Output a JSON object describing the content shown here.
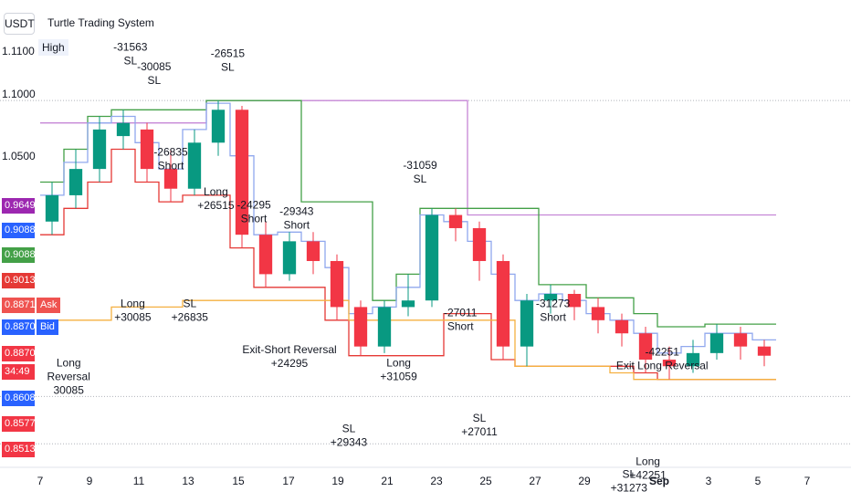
{
  "symbol": "USDT",
  "title": "Turtle Trading System",
  "high_label": "High",
  "yaxis": {
    "ticks": [
      1.1,
      1.05
    ],
    "tick_labels": [
      "1.1000",
      "1.0500"
    ],
    "top_partial": "1.1100"
  },
  "xaxis": {
    "labels": [
      "7",
      "9",
      "11",
      "13",
      "15",
      "17",
      "19",
      "21",
      "23",
      "25",
      "27",
      "29",
      "Sep",
      "3",
      "5",
      "7"
    ]
  },
  "price_tags": [
    {
      "label": "0.9649",
      "color": "#9c27b0"
    },
    {
      "label": "0.9088",
      "color": "#2962ff"
    },
    {
      "label": "0.9088",
      "color": "#43a047"
    },
    {
      "label": "0.9013",
      "color": "#e53935"
    },
    {
      "label": "0.8871",
      "color": "#ef5350",
      "side": "Ask"
    },
    {
      "label": "0.8870",
      "color": "#2962ff",
      "side": "Bid"
    },
    {
      "label": "0.8870",
      "color": "#f23645"
    },
    {
      "label": "34:49",
      "color": "#f23645"
    },
    {
      "label": "0.8608",
      "color": "#2962ff"
    },
    {
      "label": "0.8577",
      "color": "#f23645"
    },
    {
      "label": "0.8513",
      "color": "#f23645"
    }
  ],
  "chart_data": {
    "type": "candlestick",
    "title": "Turtle Trading System",
    "x_dates": [
      "7",
      "8",
      "9",
      "10",
      "11",
      "12",
      "13",
      "14",
      "15",
      "16",
      "17",
      "18",
      "19",
      "20",
      "21",
      "22",
      "23",
      "24",
      "25",
      "26",
      "27",
      "28",
      "29",
      "30",
      "31",
      "Sep",
      "2",
      "3",
      "4",
      "5",
      "6"
    ],
    "close": [
      1.04,
      1.06,
      1.09,
      1.095,
      1.06,
      1.045,
      1.08,
      1.105,
      1.01,
      0.98,
      1.005,
      0.99,
      0.955,
      0.925,
      0.955,
      0.96,
      1.025,
      1.015,
      0.99,
      0.925,
      0.96,
      0.965,
      0.955,
      0.945,
      0.935,
      0.915,
      0.91,
      0.92,
      0.935,
      0.925,
      0.918
    ],
    "open": [
      1.02,
      1.04,
      1.06,
      1.085,
      1.09,
      1.06,
      1.045,
      1.08,
      1.105,
      1.01,
      0.98,
      1.005,
      0.99,
      0.955,
      0.925,
      0.955,
      0.96,
      1.025,
      1.015,
      0.99,
      0.925,
      0.96,
      0.965,
      0.955,
      0.945,
      0.935,
      0.915,
      0.91,
      0.92,
      0.935,
      0.925
    ],
    "high": [
      1.05,
      1.075,
      1.1,
      1.105,
      1.095,
      1.075,
      1.09,
      1.112,
      1.108,
      1.02,
      1.012,
      1.012,
      0.995,
      0.96,
      0.96,
      0.98,
      1.03,
      1.03,
      1.02,
      0.995,
      0.965,
      0.972,
      0.968,
      0.962,
      0.95,
      0.94,
      0.925,
      0.93,
      0.942,
      0.94,
      0.93
    ],
    "low": [
      1.01,
      1.03,
      1.05,
      1.075,
      1.05,
      1.035,
      1.04,
      1.07,
      1.0,
      0.97,
      0.975,
      0.98,
      0.945,
      0.918,
      0.92,
      0.948,
      0.955,
      1.005,
      0.975,
      0.915,
      0.91,
      0.95,
      0.945,
      0.935,
      0.925,
      0.905,
      0.9,
      0.905,
      0.915,
      0.915,
      0.91
    ],
    "lines": [
      {
        "color": "#c586d6",
        "values": [
          1.095,
          1.095,
          1.095,
          1.095,
          1.095,
          1.095,
          1.095,
          1.112,
          1.112,
          1.112,
          1.112,
          1.112,
          1.112,
          1.112,
          1.112,
          1.112,
          1.112,
          1.112,
          1.025,
          1.025,
          1.025,
          1.025,
          1.025,
          1.025,
          1.025,
          1.025,
          1.025,
          1.025,
          1.025,
          1.025,
          1.025
        ]
      },
      {
        "color": "#43a047",
        "values": [
          1.05,
          1.075,
          1.1,
          1.105,
          1.105,
          1.105,
          1.105,
          1.112,
          1.112,
          1.112,
          1.112,
          1.035,
          1.035,
          1.035,
          0.96,
          0.98,
          1.03,
          1.03,
          1.03,
          1.03,
          1.03,
          0.972,
          0.972,
          0.962,
          0.962,
          0.95,
          0.94,
          0.94,
          0.942,
          0.942,
          0.942
        ]
      },
      {
        "color": "#90a8ee",
        "values": [
          1.04,
          1.065,
          1.095,
          1.1,
          1.08,
          1.06,
          1.09,
          1.11,
          1.07,
          1.01,
          1.012,
          1.005,
          0.985,
          0.95,
          0.955,
          0.97,
          1.025,
          1.02,
          1.005,
          0.98,
          0.96,
          0.965,
          0.96,
          0.95,
          0.945,
          0.935,
          0.92,
          0.925,
          0.935,
          0.935,
          0.93
        ]
      },
      {
        "color": "#e53935",
        "values": [
          1.01,
          1.03,
          1.05,
          1.075,
          1.05,
          1.035,
          1.04,
          1.04,
          1.0,
          0.97,
          0.97,
          0.97,
          0.945,
          0.918,
          0.918,
          0.918,
          0.918,
          0.95,
          0.95,
          0.915,
          0.91,
          0.91,
          0.91,
          0.91,
          0.91,
          0.905,
          0.9,
          0.9,
          0.9,
          0.9,
          0.9
        ]
      },
      {
        "color": "#f5b041",
        "values": [
          0.945,
          0.945,
          0.945,
          0.955,
          0.955,
          0.955,
          0.96,
          0.96,
          0.96,
          0.96,
          0.96,
          0.96,
          0.96,
          0.945,
          0.945,
          0.945,
          0.945,
          0.945,
          0.945,
          0.945,
          0.91,
          0.91,
          0.91,
          0.91,
          0.905,
          0.9,
          0.9,
          0.9,
          0.9,
          0.9,
          0.9
        ]
      }
    ],
    "annotations": [
      {
        "x": 3.3,
        "y": 1.15,
        "lines": [
          "-31563",
          "SL"
        ]
      },
      {
        "x": 4.3,
        "y": 1.135,
        "lines": [
          "-30085",
          "SL"
        ]
      },
      {
        "x": 7.4,
        "y": 1.145,
        "lines": [
          "-26515",
          "SL"
        ]
      },
      {
        "x": 5.0,
        "y": 1.07,
        "lines": [
          "-26835",
          "Short"
        ]
      },
      {
        "x": 6.9,
        "y": 1.04,
        "lines": [
          "Long",
          "+26515"
        ]
      },
      {
        "x": 8.5,
        "y": 1.03,
        "lines": [
          "-24295",
          "Short"
        ]
      },
      {
        "x": 10.3,
        "y": 1.025,
        "lines": [
          "-29343",
          "Short"
        ]
      },
      {
        "x": 15.5,
        "y": 1.06,
        "lines": [
          "-31059",
          "SL"
        ]
      },
      {
        "x": 3.4,
        "y": 0.955,
        "lines": [
          "Long",
          "+30085"
        ]
      },
      {
        "x": 5.8,
        "y": 0.955,
        "lines": [
          "SL",
          "+26835"
        ]
      },
      {
        "x": 10.0,
        "y": 0.92,
        "lines": [
          "Exit-Short Reversal",
          "+24295"
        ]
      },
      {
        "x": 14.6,
        "y": 0.91,
        "lines": [
          "Long",
          "+31059"
        ]
      },
      {
        "x": 12.5,
        "y": 0.86,
        "lines": [
          "SL",
          "+29343"
        ]
      },
      {
        "x": 17.2,
        "y": 0.948,
        "lines": [
          "-27011",
          "Short"
        ]
      },
      {
        "x": 18.0,
        "y": 0.868,
        "lines": [
          "SL",
          "+27011"
        ]
      },
      {
        "x": 21.1,
        "y": 0.955,
        "lines": [
          "-31273",
          "Short"
        ]
      },
      {
        "x": 25.7,
        "y": 0.918,
        "lines": [
          "-42251",
          "Exit Long Reversal"
        ]
      },
      {
        "x": 25.1,
        "y": 0.835,
        "lines": [
          "Long",
          "+42251"
        ]
      },
      {
        "x": 24.3,
        "y": 0.825,
        "lines": [
          "SL",
          "+31273"
        ]
      },
      {
        "x": 0.7,
        "y": 0.91,
        "lines": [
          "Long",
          "Reversal",
          "30085"
        ]
      }
    ],
    "ylim": [
      0.838,
      1.185
    ]
  }
}
